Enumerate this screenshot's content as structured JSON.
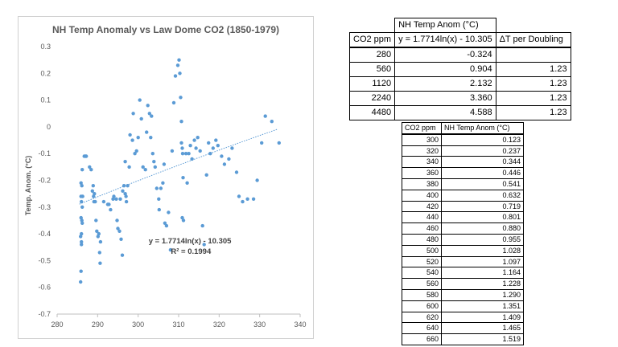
{
  "chart_data": {
    "type": "scatter",
    "title": "NH Temp Anomaly vs Law Dome CO2 (1850-1979)",
    "xlabel": "",
    "ylabel": "Temp. Anom. (°C)",
    "xlim": [
      280,
      340
    ],
    "ylim": [
      -0.7,
      0.3
    ],
    "xticks": [
      280,
      290,
      300,
      310,
      320,
      330,
      340
    ],
    "yticks": [
      -0.7,
      -0.6,
      -0.5,
      -0.4,
      -0.3,
      -0.2,
      -0.1,
      0,
      0.1,
      0.2,
      0.3
    ],
    "grid": false,
    "legend": "none",
    "series_color": "#5b9bd5",
    "trendline": {
      "type": "log",
      "a": 1.7714,
      "b": -10.305,
      "equation": "y = 1.7714ln(x) - 10.305",
      "r2": "R² = 0.1994"
    },
    "points": [
      [
        285.8,
        -0.58
      ],
      [
        285.9,
        -0.54
      ],
      [
        286.0,
        -0.44
      ],
      [
        286.0,
        -0.43
      ],
      [
        285.8,
        -0.41
      ],
      [
        286.0,
        -0.4
      ],
      [
        286.2,
        -0.36
      ],
      [
        286.1,
        -0.35
      ],
      [
        285.9,
        -0.34
      ],
      [
        286.2,
        -0.3
      ],
      [
        286.0,
        -0.28
      ],
      [
        286.3,
        -0.26
      ],
      [
        285.9,
        -0.26
      ],
      [
        286.1,
        -0.22
      ],
      [
        285.9,
        -0.21
      ],
      [
        286.2,
        -0.16
      ],
      [
        286.7,
        -0.11
      ],
      [
        287.0,
        -0.11
      ],
      [
        287.2,
        -0.11
      ],
      [
        288.0,
        -0.15
      ],
      [
        288.4,
        -0.16
      ],
      [
        288.9,
        -0.22
      ],
      [
        288.7,
        -0.24
      ],
      [
        289.2,
        -0.25
      ],
      [
        289.0,
        -0.26
      ],
      [
        289.4,
        -0.28
      ],
      [
        289.1,
        -0.28
      ],
      [
        289.6,
        -0.35
      ],
      [
        289.8,
        -0.39
      ],
      [
        290.3,
        -0.4
      ],
      [
        290.1,
        -0.41
      ],
      [
        290.7,
        -0.43
      ],
      [
        290.5,
        -0.47
      ],
      [
        290.6,
        -0.51
      ],
      [
        291.5,
        -0.28
      ],
      [
        292.5,
        -0.29
      ],
      [
        292.8,
        -0.29
      ],
      [
        293.2,
        -0.31
      ],
      [
        293.8,
        -0.27
      ],
      [
        294.0,
        -0.26
      ],
      [
        294.6,
        -0.27
      ],
      [
        294.8,
        -0.35
      ],
      [
        295.0,
        -0.38
      ],
      [
        295.4,
        -0.39
      ],
      [
        295.8,
        -0.42
      ],
      [
        296.1,
        -0.48
      ],
      [
        295.6,
        -0.27
      ],
      [
        296.2,
        -0.24
      ],
      [
        296.5,
        -0.22
      ],
      [
        296.8,
        -0.25
      ],
      [
        297.0,
        -0.26
      ],
      [
        297.1,
        -0.28
      ],
      [
        297.4,
        -0.22
      ],
      [
        297.8,
        -0.15
      ],
      [
        296.8,
        -0.13
      ],
      [
        298.0,
        -0.03
      ],
      [
        298.6,
        -0.05
      ],
      [
        298.8,
        0.05
      ],
      [
        299.2,
        -0.1
      ],
      [
        299.6,
        -0.09
      ],
      [
        300.0,
        -0.04
      ],
      [
        300.4,
        0.1
      ],
      [
        300.8,
        0.03
      ],
      [
        301.2,
        -0.15
      ],
      [
        301.8,
        -0.16
      ],
      [
        302.1,
        -0.02
      ],
      [
        302.4,
        0.08
      ],
      [
        302.8,
        0.05
      ],
      [
        303.1,
        -0.04
      ],
      [
        303.3,
        0.04
      ],
      [
        303.6,
        -0.1
      ],
      [
        303.9,
        -0.13
      ],
      [
        304.2,
        -0.15
      ],
      [
        304.6,
        -0.23
      ],
      [
        305.1,
        -0.27
      ],
      [
        305.2,
        -0.31
      ],
      [
        305.6,
        -0.23
      ],
      [
        306.1,
        -0.21
      ],
      [
        306.4,
        -0.14
      ],
      [
        306.6,
        -0.36
      ],
      [
        307.0,
        -0.37
      ],
      [
        307.5,
        -0.32
      ],
      [
        308.0,
        -0.46
      ],
      [
        308.4,
        -0.09
      ],
      [
        308.8,
        0.09
      ],
      [
        309.2,
        0.19
      ],
      [
        309.8,
        0.23
      ],
      [
        310.1,
        0.25
      ],
      [
        310.3,
        0.2
      ],
      [
        310.5,
        0.11
      ],
      [
        310.7,
        0.02
      ],
      [
        310.7,
        -0.06
      ],
      [
        310.9,
        -0.08
      ],
      [
        311.0,
        -0.1
      ],
      [
        311.1,
        -0.19
      ],
      [
        310.9,
        -0.34
      ],
      [
        311.2,
        -0.35
      ],
      [
        311.8,
        -0.1
      ],
      [
        312.1,
        -0.21
      ],
      [
        312.5,
        -0.1
      ],
      [
        312.9,
        -0.07
      ],
      [
        313.3,
        -0.12
      ],
      [
        313.9,
        -0.05
      ],
      [
        314.3,
        -0.08
      ],
      [
        314.7,
        -0.04
      ],
      [
        315.3,
        -0.09
      ],
      [
        315.9,
        -0.37
      ],
      [
        316.3,
        -0.44
      ],
      [
        316.9,
        -0.18
      ],
      [
        317.4,
        -0.06
      ],
      [
        317.8,
        -0.1
      ],
      [
        318.5,
        -0.08
      ],
      [
        319.2,
        -0.05
      ],
      [
        319.7,
        -0.07
      ],
      [
        320.6,
        -0.11
      ],
      [
        321.3,
        -0.14
      ],
      [
        322.4,
        -0.12
      ],
      [
        323.2,
        -0.08
      ],
      [
        324.3,
        -0.17
      ],
      [
        324.9,
        -0.26
      ],
      [
        325.8,
        -0.28
      ],
      [
        327.0,
        -0.27
      ],
      [
        328.5,
        -0.27
      ],
      [
        329.4,
        -0.2
      ],
      [
        330.5,
        -0.06
      ],
      [
        331.4,
        0.04
      ],
      [
        333.0,
        0.02
      ],
      [
        334.8,
        -0.06
      ]
    ]
  },
  "table1": {
    "header1": "NH Temp Anom (°C)",
    "header2": [
      "CO2 ppm",
      "y = 1.7714ln(x) - 10.305",
      "ΔT per Doubling"
    ],
    "rows": [
      [
        "280",
        "-0.324",
        ""
      ],
      [
        "560",
        "0.904",
        "1.23"
      ],
      [
        "1120",
        "2.132",
        "1.23"
      ],
      [
        "2240",
        "3.360",
        "1.23"
      ],
      [
        "4480",
        "4.588",
        "1.23"
      ]
    ]
  },
  "table2": {
    "header": [
      "CO2 ppm",
      "NH Temp Anom (°C)"
    ],
    "rows": [
      [
        "300",
        "0.123"
      ],
      [
        "320",
        "0.237"
      ],
      [
        "340",
        "0.344"
      ],
      [
        "360",
        "0.446"
      ],
      [
        "380",
        "0.541"
      ],
      [
        "400",
        "0.632"
      ],
      [
        "420",
        "0.719"
      ],
      [
        "440",
        "0.801"
      ],
      [
        "460",
        "0.880"
      ],
      [
        "480",
        "0.955"
      ],
      [
        "500",
        "1.028"
      ],
      [
        "520",
        "1.097"
      ],
      [
        "540",
        "1.164"
      ],
      [
        "560",
        "1.228"
      ],
      [
        "580",
        "1.290"
      ],
      [
        "600",
        "1.351"
      ],
      [
        "620",
        "1.409"
      ],
      [
        "640",
        "1.465"
      ],
      [
        "660",
        "1.519"
      ]
    ]
  }
}
